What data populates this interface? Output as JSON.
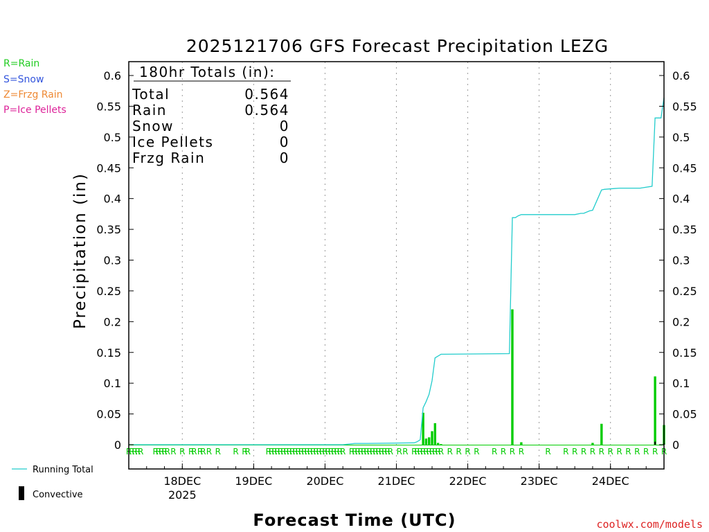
{
  "chart_data": {
    "type": "bar",
    "title": "2025121706 GFS Forecast Precipitation LEZG",
    "xlabel": "Forecast Time (UTC)",
    "ylabel": "Precipitation (in)",
    "ylim": [
      0,
      0.62
    ],
    "y_ticks": [
      0,
      0.05,
      0.1,
      0.15,
      0.2,
      0.25,
      0.3,
      0.35,
      0.4,
      0.45,
      0.5,
      0.55,
      0.6
    ],
    "y_tick_labels": [
      "0",
      "0.05",
      "0.1",
      "0.15",
      "0.2",
      "0.25",
      "0.3",
      "0.35",
      "0.4",
      "0.45",
      "0.5",
      "0.55",
      "0.6"
    ],
    "xlim_hours": [
      0,
      180
    ],
    "x_ticks": [
      {
        "hour": 18,
        "label": "18DEC",
        "sublabel": "2025"
      },
      {
        "hour": 42,
        "label": "19DEC",
        "sublabel": ""
      },
      {
        "hour": 66,
        "label": "20DEC",
        "sublabel": ""
      },
      {
        "hour": 90,
        "label": "21DEC",
        "sublabel": ""
      },
      {
        "hour": 114,
        "label": "22DEC",
        "sublabel": ""
      },
      {
        "hour": 138,
        "label": "23DEC",
        "sublabel": ""
      },
      {
        "hour": 162,
        "label": "24DEC",
        "sublabel": ""
      }
    ],
    "grid": "vertical-dotted",
    "legend": {
      "type_key": [
        {
          "label": "R=Rain",
          "color": "#22cc22"
        },
        {
          "label": "S=Snow",
          "color": "#3355dd"
        },
        {
          "label": "Z=Frzg Rain",
          "color": "#ee8833"
        },
        {
          "label": "P=Ice Pellets",
          "color": "#dd2299"
        }
      ],
      "series": [
        {
          "label": "Running Total",
          "color": "#22cccc"
        },
        {
          "label": "Convective",
          "color": "#000000"
        }
      ]
    },
    "totals": {
      "header": "180hr Totals (in):",
      "rows": [
        {
          "label": "Total",
          "value": "0.564"
        },
        {
          "label": "Rain",
          "value": "0.564"
        },
        {
          "label": "Snow",
          "value": "0"
        },
        {
          "label": "Ice Pellets",
          "value": "0"
        },
        {
          "label": "Frzg Rain",
          "value": "0"
        }
      ]
    },
    "series": [
      {
        "name": "Precipitation (Rain)",
        "color": "#00cc00",
        "hours": [
          99,
          100,
          101,
          102,
          103,
          104,
          105,
          129,
          132,
          156,
          159,
          177,
          180
        ],
        "values": [
          0.052,
          0.01,
          0.012,
          0.022,
          0.035,
          0.003,
          0.001,
          0.22,
          0.004,
          0.003,
          0.034,
          0.111,
          0.032
        ]
      },
      {
        "name": "Convective",
        "color": "#000000",
        "hours": [
          177,
          180
        ],
        "values": [
          0.005,
          0.002
        ]
      },
      {
        "name": "Running Total",
        "color": "#22cccc",
        "hours": [
          0,
          72,
          76,
          80,
          96,
          97,
          98,
          99,
          100,
          101,
          102,
          103,
          104,
          105,
          106,
          128,
          129,
          130,
          131,
          132,
          150,
          152,
          153,
          155,
          156,
          159,
          160,
          165,
          172,
          176,
          177,
          179,
          180
        ],
        "values": [
          0,
          0,
          0.002,
          0.002,
          0.003,
          0.005,
          0.008,
          0.06,
          0.07,
          0.082,
          0.104,
          0.141,
          0.144,
          0.147,
          0.147,
          0.148,
          0.369,
          0.369,
          0.372,
          0.374,
          0.374,
          0.376,
          0.376,
          0.38,
          0.381,
          0.414,
          0.415,
          0.417,
          0.417,
          0.42,
          0.531,
          0.531,
          0.564
        ]
      }
    ],
    "precip_type_markers": {
      "symbol": "R",
      "color": "#00cc00",
      "hours": [
        0,
        1,
        2,
        3,
        4,
        9,
        10,
        11,
        12,
        13,
        15,
        18,
        21,
        22,
        24,
        25,
        27,
        30,
        36,
        39,
        40,
        47,
        48,
        49,
        50,
        51,
        52,
        53,
        54,
        55,
        56,
        57,
        58,
        59,
        60,
        61,
        62,
        63,
        64,
        65,
        66,
        67,
        68,
        69,
        70,
        71,
        72,
        75,
        76,
        77,
        78,
        79,
        80,
        81,
        82,
        83,
        84,
        85,
        86,
        87,
        88,
        91,
        93,
        96,
        97,
        98,
        99,
        100,
        101,
        102,
        103,
        104,
        105,
        108,
        111,
        114,
        117,
        123,
        126,
        129,
        132,
        141,
        147,
        150,
        153,
        156,
        159,
        162,
        165,
        168,
        171,
        174,
        177,
        180
      ]
    },
    "source": "coolwx.com/models"
  }
}
